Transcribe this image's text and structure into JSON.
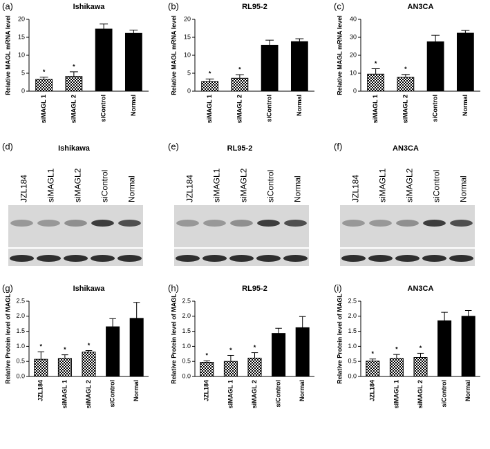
{
  "chart_data": [
    {
      "type": "bar",
      "panel": "(a)",
      "title": "Ishikawa",
      "ylabel": "Relative MAGL mRNA level",
      "categories": [
        "siMAGL 1",
        "siMAGL 2",
        "siControl",
        "Normal"
      ],
      "values": [
        3.3,
        4.1,
        17.3,
        16.1
      ],
      "errors": [
        0.6,
        1.3,
        1.4,
        0.9
      ],
      "patterns": [
        "checker",
        "checker",
        "solid",
        "solid"
      ],
      "color": "#000000",
      "annotations": [
        {
          "category": "siMAGL 1",
          "text": "*"
        },
        {
          "category": "siMAGL 2",
          "text": "*"
        }
      ],
      "ylim": [
        0,
        20
      ],
      "yticks": [
        0,
        5,
        10,
        15,
        20
      ]
    },
    {
      "type": "bar",
      "panel": "(b)",
      "title": "RL95-2",
      "ylabel": "Relative MAGL mRNA level",
      "categories": [
        "siMAGL 1",
        "siMAGL 2",
        "siControl",
        "Normal"
      ],
      "values": [
        2.7,
        3.6,
        12.8,
        13.8
      ],
      "errors": [
        0.7,
        1.0,
        1.4,
        0.8
      ],
      "patterns": [
        "checker",
        "checker",
        "solid",
        "solid"
      ],
      "color": "#000000",
      "annotations": [
        {
          "category": "siMAGL 1",
          "text": "*"
        },
        {
          "category": "siMAGL 2",
          "text": "*"
        }
      ],
      "ylim": [
        0,
        20
      ],
      "yticks": [
        0,
        5,
        10,
        15,
        20
      ]
    },
    {
      "type": "bar",
      "panel": "(c)",
      "title": "AN3CA",
      "ylabel": "Relative MAGL mRNA level",
      "categories": [
        "siMAGL 1",
        "siMAGL 2",
        "siControl",
        "Normal"
      ],
      "values": [
        9.5,
        7.7,
        27.5,
        32.3
      ],
      "errors": [
        3.0,
        1.6,
        3.6,
        1.5
      ],
      "patterns": [
        "checker",
        "checker",
        "solid",
        "solid"
      ],
      "color": "#000000",
      "annotations": [
        {
          "category": "siMAGL 1",
          "text": "*"
        },
        {
          "category": "siMAGL 2",
          "text": "*"
        }
      ],
      "ylim": [
        0,
        40
      ],
      "yticks": [
        0,
        10,
        20,
        30,
        40
      ]
    },
    {
      "type": "bar",
      "panel": "(g)",
      "title": "Ishikawa",
      "ylabel": "Relative Protein level of MAGL",
      "categories": [
        "JZL184",
        "siMAGL 1",
        "siMAGL 2",
        "siControl",
        "Normal"
      ],
      "values": [
        0.57,
        0.6,
        0.81,
        1.65,
        1.93
      ],
      "errors": [
        0.25,
        0.12,
        0.05,
        0.27,
        0.53
      ],
      "patterns": [
        "checker",
        "checker",
        "checker",
        "solid",
        "solid"
      ],
      "color": "#000000",
      "annotations": [
        {
          "category": "JZL184",
          "text": "*"
        },
        {
          "category": "siMAGL 1",
          "text": "*"
        },
        {
          "category": "siMAGL 2",
          "text": "*"
        }
      ],
      "ylim": [
        0,
        2.5
      ],
      "yticks": [
        {
          "value": 0,
          "label": "0.0"
        },
        0.5,
        {
          "value": 1,
          "label": "1.0"
        },
        1.5,
        {
          "value": 2,
          "label": "2.0"
        },
        2.5
      ]
    },
    {
      "type": "bar",
      "panel": "(h)",
      "title": "RL95-2",
      "ylabel": "Relative Protein level of MAGL",
      "categories": [
        "JZL184",
        "siMAGL 1",
        "siMAGL 2",
        "siControl",
        "Normal"
      ],
      "values": [
        0.47,
        0.5,
        0.61,
        1.43,
        1.62
      ],
      "errors": [
        0.05,
        0.2,
        0.18,
        0.17,
        0.37
      ],
      "patterns": [
        "checker",
        "checker",
        "checker",
        "solid",
        "solid"
      ],
      "color": "#000000",
      "annotations": [
        {
          "category": "JZL184",
          "text": "*"
        },
        {
          "category": "siMAGL 1",
          "text": "*"
        },
        {
          "category": "siMAGL 2",
          "text": "*"
        }
      ],
      "ylim": [
        0,
        2.5
      ],
      "yticks": [
        {
          "value": 0,
          "label": "0.0"
        },
        0.5,
        {
          "value": 1,
          "label": "1.0"
        },
        1.5,
        {
          "value": 2,
          "label": "2.0"
        },
        2.5
      ]
    },
    {
      "type": "bar",
      "panel": "(i)",
      "title": "AN3CA",
      "ylabel": "Relative Protein level of MAGL",
      "categories": [
        "JZL184",
        "siMAGL 1",
        "siMAGL 2",
        "siControl",
        "Normal"
      ],
      "values": [
        0.51,
        0.6,
        0.63,
        1.85,
        2.0
      ],
      "errors": [
        0.07,
        0.13,
        0.14,
        0.28,
        0.19
      ],
      "patterns": [
        "checker",
        "checker",
        "checker",
        "solid",
        "solid"
      ],
      "color": "#000000",
      "annotations": [
        {
          "category": "JZL184",
          "text": "*"
        },
        {
          "category": "siMAGL 1",
          "text": "*"
        },
        {
          "category": "siMAGL 2",
          "text": "*"
        }
      ],
      "ylim": [
        0,
        2.5
      ],
      "yticks": [
        {
          "value": 0,
          "label": "0.0"
        },
        0.5,
        {
          "value": 1,
          "label": "1.0"
        },
        1.5,
        {
          "value": 2,
          "label": "2.0"
        },
        2.5
      ]
    }
  ],
  "blots": [
    {
      "panel": "(d)",
      "title": "Ishikawa",
      "lanes": [
        "JZL184",
        "siMAGL1",
        "siMAGL2",
        "siControl",
        "Normal"
      ]
    },
    {
      "panel": "(e)",
      "title": "RL95-2",
      "lanes": [
        "JZL184",
        "siMAGL1",
        "siMAGL2",
        "siControl",
        "Normal"
      ]
    },
    {
      "panel": "(f)",
      "title": "AN3CA",
      "lanes": [
        "JZL184",
        "siMAGL1",
        "siMAGL2",
        "siControl",
        "Normal"
      ]
    }
  ]
}
